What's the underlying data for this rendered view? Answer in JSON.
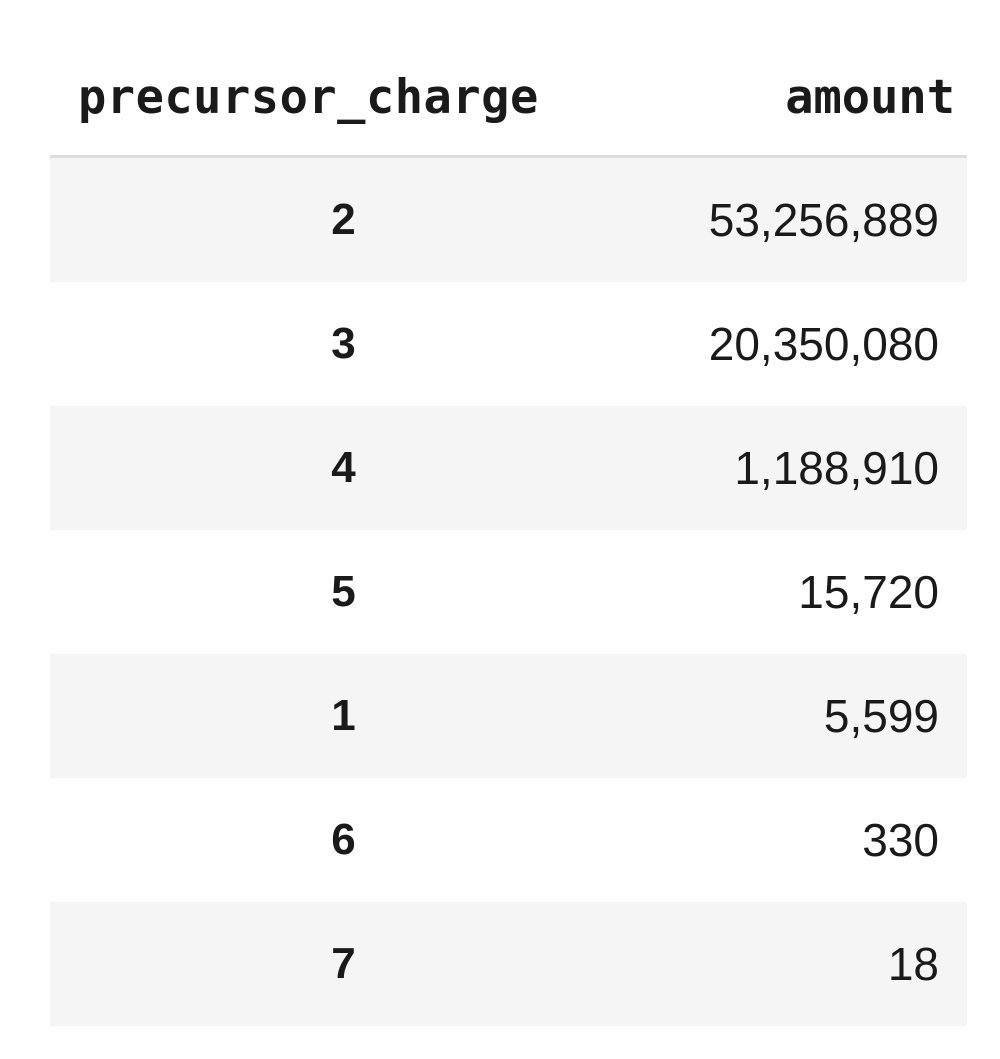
{
  "table": {
    "columns": [
      "precursor_charge",
      "amount"
    ],
    "rows": [
      {
        "precursor_charge": "2",
        "amount": "53,256,889"
      },
      {
        "precursor_charge": "3",
        "amount": "20,350,080"
      },
      {
        "precursor_charge": "4",
        "amount": "1,188,910"
      },
      {
        "precursor_charge": "5",
        "amount": "15,720"
      },
      {
        "precursor_charge": "1",
        "amount": "5,599"
      },
      {
        "precursor_charge": "6",
        "amount": "330"
      },
      {
        "precursor_charge": "7",
        "amount": "18"
      }
    ]
  }
}
